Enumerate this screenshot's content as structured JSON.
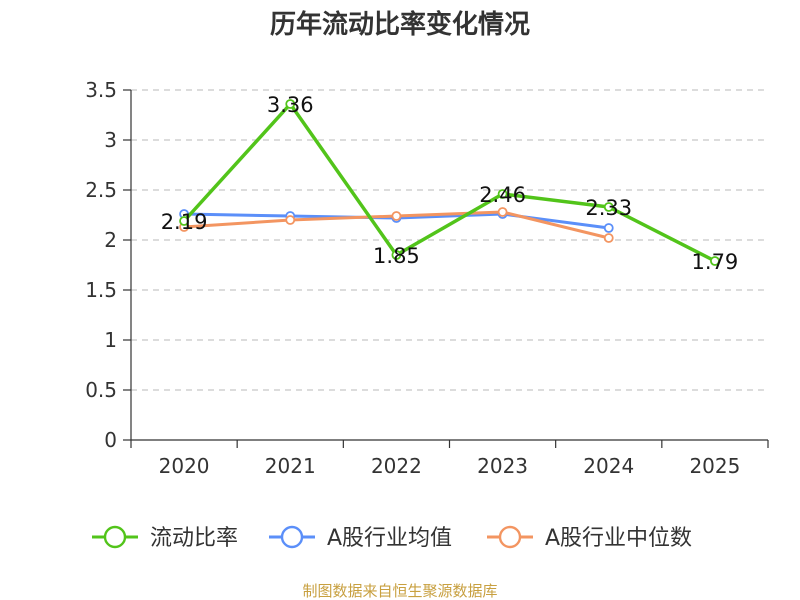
{
  "chart_data": {
    "type": "line",
    "title": "历年流动比率变化情况",
    "categories": [
      "2020",
      "2021",
      "2022",
      "2023",
      "2024",
      "2025"
    ],
    "ylim": [
      0,
      3.5
    ],
    "yticks": [
      "0",
      "0.5",
      "1",
      "1.5",
      "2",
      "2.5",
      "3",
      "3.5"
    ],
    "grid": true,
    "legend_position": "bottom",
    "series": [
      {
        "name": "流动比率",
        "color": "#52c41a",
        "values": [
          2.19,
          3.36,
          1.85,
          2.46,
          2.33,
          1.79
        ],
        "labels": [
          "2.19",
          "3.36",
          "1.85",
          "2.46",
          "2.33",
          "1.79"
        ]
      },
      {
        "name": "A股行业均值",
        "color": "#5b8ff9",
        "values": [
          2.26,
          2.24,
          2.22,
          2.26,
          2.12,
          null
        ]
      },
      {
        "name": "A股行业中位数",
        "color": "#f39561",
        "values": [
          2.13,
          2.2,
          2.24,
          2.28,
          2.02,
          null
        ]
      }
    ],
    "source": "制图数据来自恒生聚源数据库"
  }
}
